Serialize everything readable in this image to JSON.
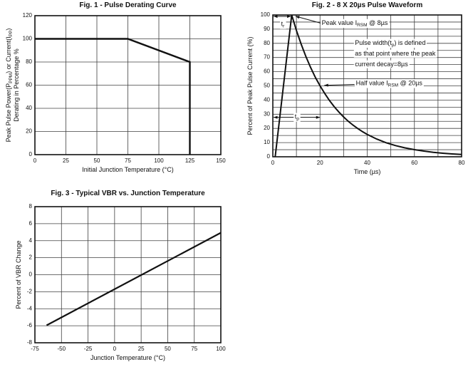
{
  "colors": {
    "line": "#111111",
    "grid": "#404040",
    "axis": "#111111",
    "text": "#111111",
    "background": "#ffffff"
  },
  "chart_data": [
    {
      "type": "line",
      "title": "Fig. 1 - Pulse Derating Curve",
      "xlabel": "Initial Junction Temperature (°C)",
      "ylabel_lines": [
        "Peak Pulse Power(P~PPM~) or Current(I~PP~)",
        "Derating in Percentage %"
      ],
      "xlim": [
        0,
        150
      ],
      "ylim": [
        0,
        120
      ],
      "xticks": [
        0,
        25,
        50,
        75,
        100,
        125,
        150
      ],
      "yticks": [
        0,
        20,
        40,
        60,
        80,
        100,
        120
      ],
      "xgridlines": [
        25,
        50,
        75,
        100,
        125
      ],
      "ygridlines": [
        20,
        40,
        60,
        80,
        100
      ],
      "legend": null,
      "series": [
        {
          "name": "derating-curve",
          "stroke_width": 2.4,
          "points": [
            [
              0,
              100
            ],
            [
              75,
              100
            ],
            [
              125,
              80
            ],
            [
              125,
              0
            ]
          ]
        }
      ],
      "annotations": []
    },
    {
      "type": "line",
      "title": "Fig. 2 - 8 X 20µs Pulse Waveform",
      "xlabel": "Time (µs)",
      "ylabel_lines": [
        "Percent of Peak Pulse Current (%)"
      ],
      "xlim": [
        0,
        80
      ],
      "ylim": [
        0,
        100
      ],
      "xticks": [
        0,
        20,
        40,
        60,
        80
      ],
      "yticks": [
        0,
        10,
        20,
        30,
        40,
        50,
        60,
        70,
        80,
        90,
        100
      ],
      "xgridlines": [
        10,
        20,
        30,
        40,
        50,
        60,
        70
      ],
      "ygridlines": [
        5,
        10,
        15,
        20,
        25,
        30,
        35,
        40,
        45,
        50,
        55,
        60,
        65,
        70,
        75,
        80,
        85,
        90,
        95
      ],
      "legend": null,
      "series": [
        {
          "name": "pulse-waveform",
          "stroke_width": 2,
          "points": [
            [
              1,
              0
            ],
            [
              8,
              100
            ],
            [
              10,
              89.1
            ],
            [
              12,
              79.4
            ],
            [
              14,
              70.7
            ],
            [
              16,
              63
            ],
            [
              18,
              56.1
            ],
            [
              20,
              50
            ],
            [
              22,
              44.6
            ],
            [
              24,
              39.7
            ],
            [
              26,
              35.4
            ],
            [
              28,
              31.5
            ],
            [
              30,
              28.1
            ],
            [
              32,
              25
            ],
            [
              34,
              22.3
            ],
            [
              36,
              19.9
            ],
            [
              38,
              17.7
            ],
            [
              40,
              15.8
            ],
            [
              44,
              12.5
            ],
            [
              48,
              9.9
            ],
            [
              52,
              7.9
            ],
            [
              56,
              6.3
            ],
            [
              60,
              5
            ],
            [
              64,
              4
            ],
            [
              68,
              3.1
            ],
            [
              72,
              2.5
            ],
            [
              76,
              2
            ],
            [
              80,
              1.6
            ]
          ]
        }
      ],
      "annotations": [
        {
          "kind": "darrow",
          "name": "tr-span-arrow",
          "x1": 0.3,
          "y1": 99,
          "x2": 7.7,
          "y2": 99
        },
        {
          "kind": "text",
          "name": "tr-label",
          "x": 4.2,
          "y": 93.2,
          "text": "t~r~",
          "anchor": "middle",
          "bg": true
        },
        {
          "kind": "arrow",
          "name": "peak-callout-arrow",
          "x1": 20.2,
          "y1": 94.3,
          "x2": 9.6,
          "y2": 99.1
        },
        {
          "kind": "text",
          "name": "peak-value-label",
          "x": 20.7,
          "y": 94,
          "text": "Peak value I~RSM~ @ 8µs",
          "anchor": "start",
          "bg": true
        },
        {
          "kind": "text",
          "name": "pulse-width-note-line1",
          "x": 34.8,
          "y": 80,
          "text": "Pulse width(t~p~) is defined",
          "anchor": "start",
          "bg": true
        },
        {
          "kind": "text",
          "name": "pulse-width-note-line2",
          "x": 34.8,
          "y": 72.4,
          "text": "as that point where the peak",
          "anchor": "start",
          "bg": true
        },
        {
          "kind": "text",
          "name": "pulse-width-note-line3",
          "x": 34.8,
          "y": 64.9,
          "text": "current decay=8µs",
          "anchor": "start",
          "bg": true
        },
        {
          "kind": "arrow",
          "name": "half-callout-arrow",
          "x1": 34.6,
          "y1": 51,
          "x2": 21.8,
          "y2": 50.4
        },
        {
          "kind": "text",
          "name": "half-value-label",
          "x": 35.2,
          "y": 51.6,
          "text": "Half value I~RSM~ @ 20µs",
          "anchor": "start",
          "bg": true
        },
        {
          "kind": "darrow",
          "name": "tp-span-arrow",
          "x1": 0.3,
          "y1": 27.8,
          "x2": 20,
          "y2": 27.8
        },
        {
          "kind": "text",
          "name": "tp-label",
          "x": 10.2,
          "y": 27.8,
          "text": "t~p~",
          "anchor": "middle",
          "bg": true
        }
      ]
    },
    {
      "type": "line",
      "title": "Fig. 3 - Typical VBR vs. Junction Temperature",
      "xlabel": "Junction Temperature (°C)",
      "ylabel_lines": [
        "Percent of VBR Change"
      ],
      "xlim": [
        -75,
        100
      ],
      "ylim": [
        -8,
        8
      ],
      "xticks": [
        -75,
        -50,
        -25,
        0,
        25,
        50,
        75,
        100
      ],
      "yticks": [
        -8,
        -6,
        -4,
        -2,
        0,
        2,
        4,
        6,
        8
      ],
      "xgridlines": [
        -50,
        -25,
        0,
        25,
        50,
        75
      ],
      "ygridlines": [
        -6,
        -4,
        -2,
        0,
        2,
        4,
        6
      ],
      "legend": null,
      "series": [
        {
          "name": "vbr-change-line",
          "stroke_width": 2.2,
          "points": [
            [
              -64,
              -5.95
            ],
            [
              100,
              4.93
            ]
          ]
        }
      ],
      "annotations": []
    }
  ]
}
